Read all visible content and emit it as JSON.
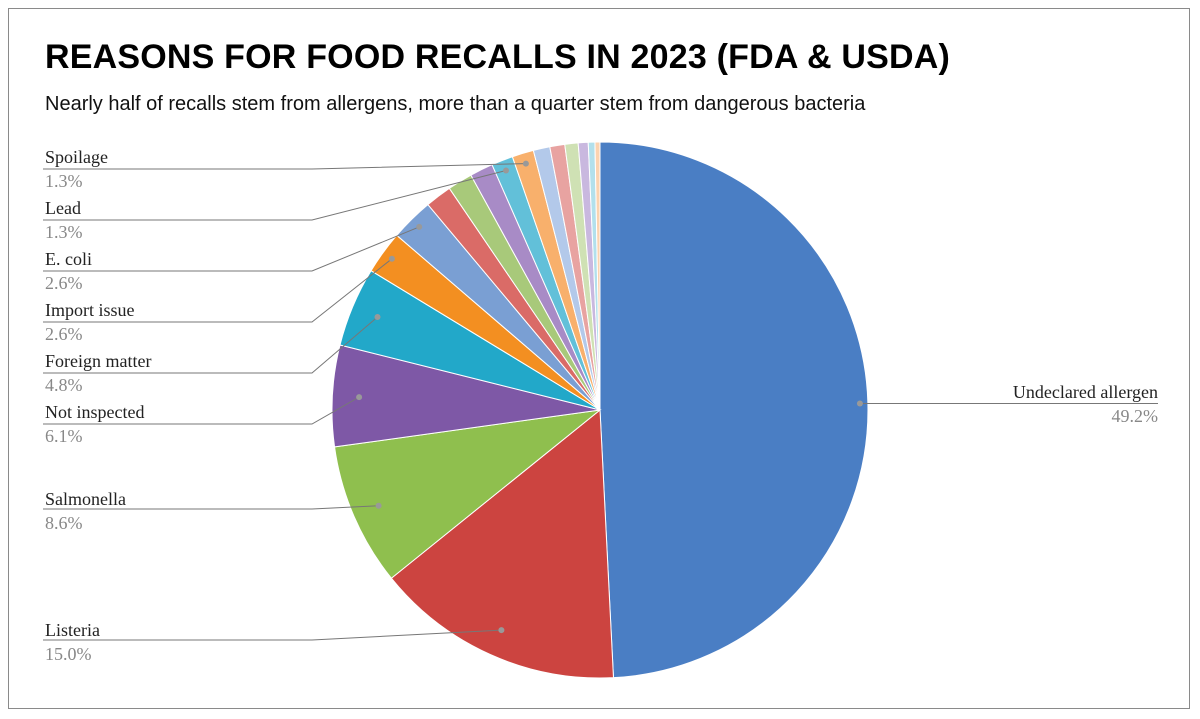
{
  "chart_data": {
    "type": "pie",
    "title": "REASONS FOR FOOD RECALLS IN 2023 (FDA & USDA)",
    "subtitle": "Nearly half of recalls stem from allergens, more than a quarter stem from dangerous bacteria",
    "slices": [
      {
        "label": "Undeclared allergen",
        "value": 49.2,
        "pct_label": "49.2%",
        "color": "#4a7ec4",
        "labeled": true
      },
      {
        "label": "Listeria",
        "value": 15.0,
        "pct_label": "15.0%",
        "color": "#cc4440",
        "labeled": true
      },
      {
        "label": "Salmonella",
        "value": 8.6,
        "pct_label": "8.6%",
        "color": "#8fbf4e",
        "labeled": true
      },
      {
        "label": "Not inspected",
        "value": 6.1,
        "pct_label": "6.1%",
        "color": "#7e58a6",
        "labeled": true
      },
      {
        "label": "Foreign matter",
        "value": 4.8,
        "pct_label": "4.8%",
        "color": "#22a8c9",
        "labeled": true
      },
      {
        "label": "Import issue",
        "value": 2.6,
        "pct_label": "2.6%",
        "color": "#f38f21",
        "labeled": true
      },
      {
        "label": "E. coli",
        "value": 2.6,
        "pct_label": "2.6%",
        "color": "#7a9fd3",
        "labeled": true
      },
      {
        "label": "",
        "value": 1.6,
        "pct_label": "",
        "color": "#da6b67",
        "labeled": false
      },
      {
        "label": "",
        "value": 1.5,
        "pct_label": "",
        "color": "#a8c97a",
        "labeled": false
      },
      {
        "label": "",
        "value": 1.4,
        "pct_label": "",
        "color": "#a88bc6",
        "labeled": false
      },
      {
        "label": "Lead",
        "value": 1.3,
        "pct_label": "1.3%",
        "color": "#62c0d9",
        "labeled": true
      },
      {
        "label": "Spoilage",
        "value": 1.3,
        "pct_label": "1.3%",
        "color": "#f8b06c",
        "labeled": true
      },
      {
        "label": "",
        "value": 1.0,
        "pct_label": "",
        "color": "#b3c9ea",
        "labeled": false
      },
      {
        "label": "",
        "value": 0.9,
        "pct_label": "",
        "color": "#e8a3a1",
        "labeled": false
      },
      {
        "label": "",
        "value": 0.8,
        "pct_label": "",
        "color": "#cfe1b4",
        "labeled": false
      },
      {
        "label": "",
        "value": 0.6,
        "pct_label": "",
        "color": "#c9b8df",
        "labeled": false
      },
      {
        "label": "",
        "value": 0.4,
        "pct_label": "",
        "color": "#b2e0ec",
        "labeled": false
      },
      {
        "label": "",
        "value": 0.3,
        "pct_label": "",
        "color": "#fbd3b0",
        "labeled": false
      }
    ]
  }
}
